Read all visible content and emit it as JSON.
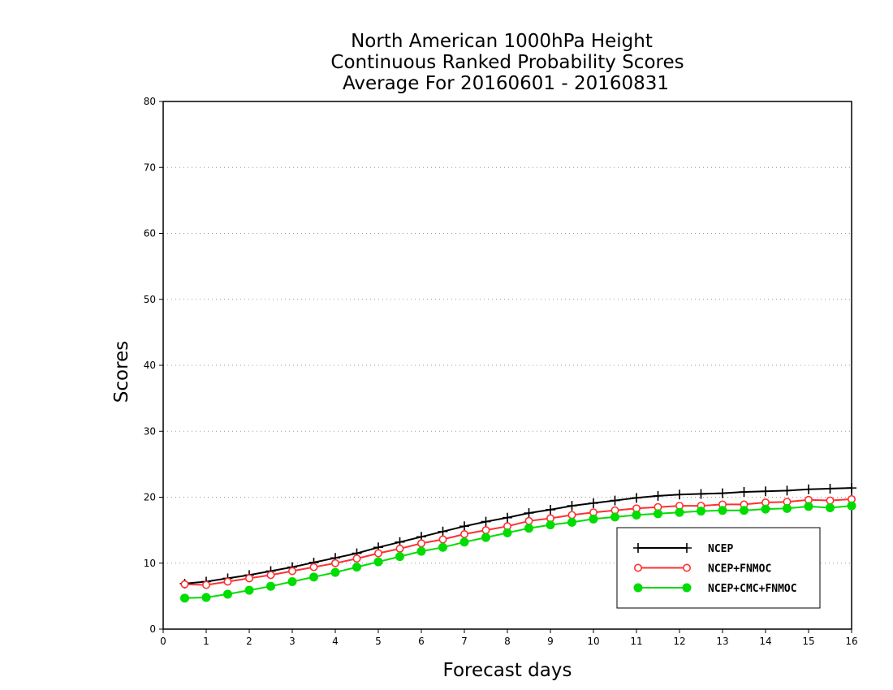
{
  "chart_data": {
    "type": "line",
    "title_lines": [
      "North American 1000hPa Height",
      "Continuous Ranked Probability Scores",
      "Average For 20160601 - 20160831"
    ],
    "xlabel": "Forecast days",
    "ylabel": "Scores",
    "xlim": [
      0,
      16
    ],
    "ylim": [
      0,
      80
    ],
    "xticks": [
      0,
      1,
      2,
      3,
      4,
      5,
      6,
      7,
      8,
      9,
      10,
      11,
      12,
      13,
      14,
      15,
      16
    ],
    "yticks": [
      0,
      10,
      20,
      30,
      40,
      50,
      60,
      70,
      80
    ],
    "grid": "dotted horizontal",
    "legend_position": "bottom-right",
    "x": [
      0.5,
      1,
      1.5,
      2,
      2.5,
      3,
      3.5,
      4,
      4.5,
      5,
      5.5,
      6,
      6.5,
      7,
      7.5,
      8,
      8.5,
      9,
      9.5,
      10,
      10.5,
      11,
      11.5,
      12,
      12.5,
      13,
      13.5,
      14,
      14.5,
      15,
      15.5,
      16
    ],
    "series": [
      {
        "name": "NCEP",
        "color": "#000000",
        "marker": "plus",
        "values": [
          6.9,
          7.2,
          7.7,
          8.2,
          8.8,
          9.4,
          10.1,
          10.8,
          11.5,
          12.4,
          13.2,
          14.0,
          14.8,
          15.6,
          16.3,
          16.9,
          17.6,
          18.1,
          18.7,
          19.1,
          19.5,
          19.9,
          20.2,
          20.4,
          20.5,
          20.6,
          20.8,
          20.9,
          21.0,
          21.2,
          21.3,
          21.4
        ]
      },
      {
        "name": "NCEP+FNMOC",
        "color": "#ff3030",
        "marker": "open-circle",
        "values": [
          6.8,
          6.7,
          7.2,
          7.7,
          8.2,
          8.8,
          9.4,
          10.0,
          10.7,
          11.5,
          12.2,
          13.0,
          13.6,
          14.4,
          15.0,
          15.6,
          16.4,
          16.8,
          17.3,
          17.7,
          18.0,
          18.3,
          18.5,
          18.7,
          18.7,
          18.9,
          18.9,
          19.2,
          19.3,
          19.6,
          19.5,
          19.7
        ]
      },
      {
        "name": "NCEP+CMC+FNMOC",
        "color": "#00dd00",
        "marker": "filled-circle",
        "values": [
          4.7,
          4.8,
          5.3,
          5.9,
          6.5,
          7.2,
          7.9,
          8.6,
          9.4,
          10.2,
          11.0,
          11.8,
          12.4,
          13.2,
          13.9,
          14.6,
          15.3,
          15.8,
          16.2,
          16.7,
          17.0,
          17.3,
          17.5,
          17.7,
          17.9,
          18.0,
          18.0,
          18.2,
          18.3,
          18.6,
          18.4,
          18.7
        ]
      }
    ]
  }
}
